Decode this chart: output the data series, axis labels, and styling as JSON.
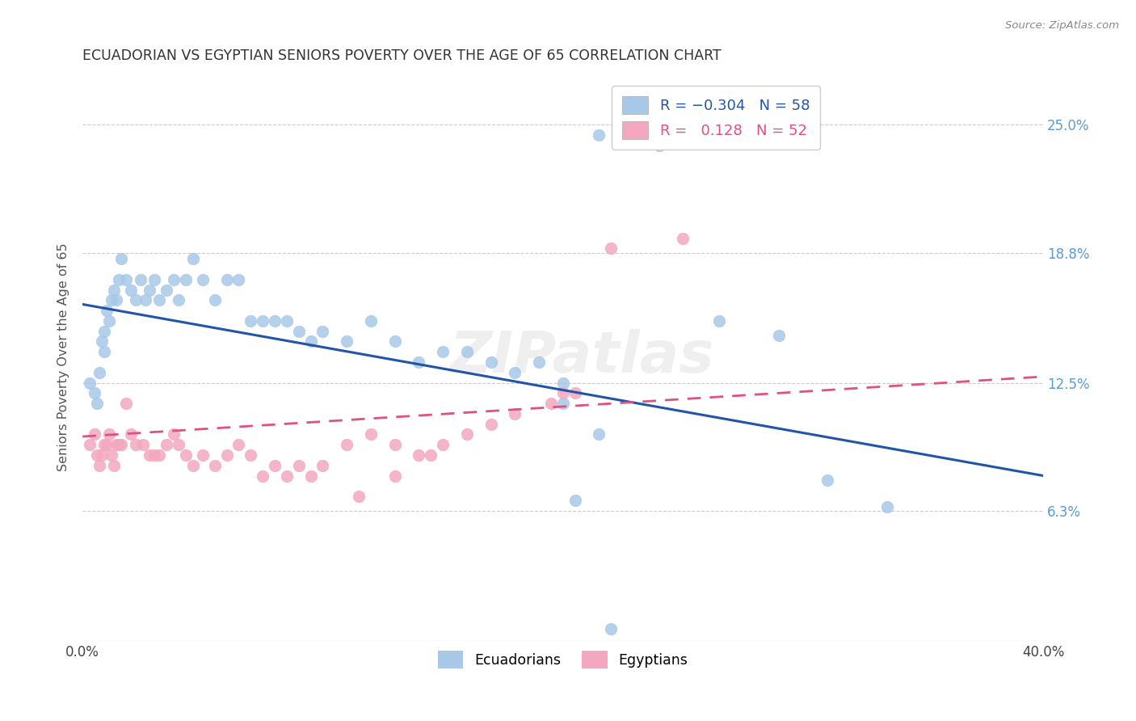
{
  "title": "ECUADORIAN VS EGYPTIAN SENIORS POVERTY OVER THE AGE OF 65 CORRELATION CHART",
  "source": "Source: ZipAtlas.com",
  "ylabel": "Seniors Poverty Over the Age of 65",
  "xlim": [
    0.0,
    0.4
  ],
  "ylim": [
    0.0,
    0.275
  ],
  "ytick_positions": [
    0.063,
    0.125,
    0.188,
    0.25
  ],
  "ytick_labels": [
    "6.3%",
    "12.5%",
    "18.8%",
    "25.0%"
  ],
  "xtick_positions": [
    0.0,
    0.05,
    0.1,
    0.15,
    0.2,
    0.25,
    0.3,
    0.35,
    0.4
  ],
  "xtick_labels": [
    "0.0%",
    "",
    "",
    "",
    "",
    "",
    "",
    "",
    "40.0%"
  ],
  "watermark": "ZIPatlas",
  "blue_color": "#A8C8E8",
  "pink_color": "#F4A8C0",
  "blue_line_color": "#2255AA",
  "pink_line_color": "#E05080",
  "blue_line_x0": 0.0,
  "blue_line_y0": 0.163,
  "blue_line_x1": 0.4,
  "blue_line_y1": 0.08,
  "pink_line_x0": 0.0,
  "pink_line_y0": 0.099,
  "pink_line_x1": 0.4,
  "pink_line_y1": 0.128,
  "ecuadorians_x": [
    0.003,
    0.005,
    0.006,
    0.007,
    0.008,
    0.009,
    0.009,
    0.01,
    0.011,
    0.012,
    0.013,
    0.014,
    0.015,
    0.016,
    0.018,
    0.02,
    0.022,
    0.024,
    0.026,
    0.028,
    0.03,
    0.032,
    0.035,
    0.038,
    0.04,
    0.043,
    0.046,
    0.05,
    0.055,
    0.06,
    0.065,
    0.07,
    0.075,
    0.08,
    0.085,
    0.09,
    0.095,
    0.1,
    0.11,
    0.12,
    0.13,
    0.14,
    0.15,
    0.16,
    0.17,
    0.18,
    0.19,
    0.2,
    0.215,
    0.24,
    0.265,
    0.29,
    0.31,
    0.335,
    0.2,
    0.215,
    0.205,
    0.22
  ],
  "ecuadorians_y": [
    0.125,
    0.12,
    0.115,
    0.13,
    0.145,
    0.14,
    0.15,
    0.16,
    0.155,
    0.165,
    0.17,
    0.165,
    0.175,
    0.185,
    0.175,
    0.17,
    0.165,
    0.175,
    0.165,
    0.17,
    0.175,
    0.165,
    0.17,
    0.175,
    0.165,
    0.175,
    0.185,
    0.175,
    0.165,
    0.175,
    0.175,
    0.155,
    0.155,
    0.155,
    0.155,
    0.15,
    0.145,
    0.15,
    0.145,
    0.155,
    0.145,
    0.135,
    0.14,
    0.14,
    0.135,
    0.13,
    0.135,
    0.125,
    0.245,
    0.24,
    0.155,
    0.148,
    0.078,
    0.065,
    0.115,
    0.1,
    0.068,
    0.006
  ],
  "egyptians_x": [
    0.003,
    0.005,
    0.006,
    0.007,
    0.008,
    0.009,
    0.01,
    0.011,
    0.012,
    0.013,
    0.014,
    0.015,
    0.016,
    0.018,
    0.02,
    0.022,
    0.025,
    0.028,
    0.03,
    0.032,
    0.035,
    0.038,
    0.04,
    0.043,
    0.046,
    0.05,
    0.055,
    0.06,
    0.065,
    0.07,
    0.075,
    0.08,
    0.085,
    0.09,
    0.095,
    0.1,
    0.11,
    0.12,
    0.13,
    0.14,
    0.15,
    0.16,
    0.17,
    0.18,
    0.2,
    0.22,
    0.25,
    0.205,
    0.195,
    0.145,
    0.13,
    0.115
  ],
  "egyptians_y": [
    0.095,
    0.1,
    0.09,
    0.085,
    0.09,
    0.095,
    0.095,
    0.1,
    0.09,
    0.085,
    0.095,
    0.095,
    0.095,
    0.115,
    0.1,
    0.095,
    0.095,
    0.09,
    0.09,
    0.09,
    0.095,
    0.1,
    0.095,
    0.09,
    0.085,
    0.09,
    0.085,
    0.09,
    0.095,
    0.09,
    0.08,
    0.085,
    0.08,
    0.085,
    0.08,
    0.085,
    0.095,
    0.1,
    0.095,
    0.09,
    0.095,
    0.1,
    0.105,
    0.11,
    0.12,
    0.19,
    0.195,
    0.12,
    0.115,
    0.09,
    0.08,
    0.07
  ]
}
